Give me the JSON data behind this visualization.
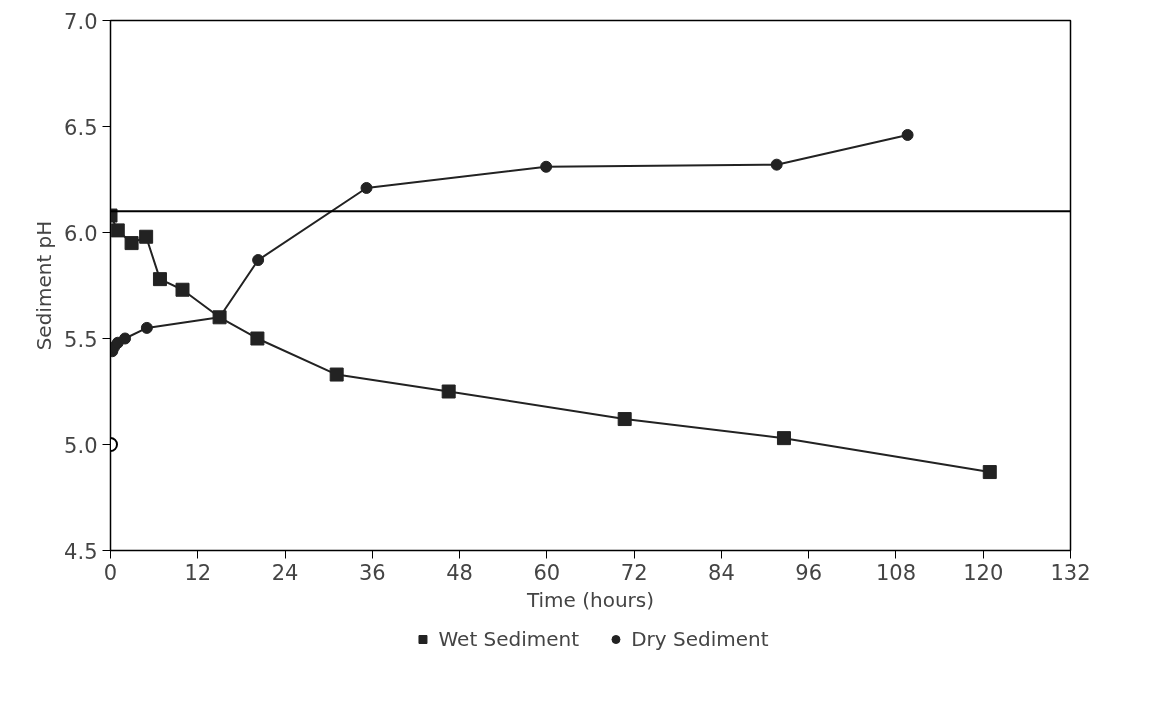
{
  "chart_data": {
    "type": "line",
    "xlabel": "Time (hours)",
    "ylabel": "Sediment pH",
    "xlim": [
      0,
      132
    ],
    "xticks": [
      0,
      12,
      24,
      36,
      48,
      60,
      72,
      84,
      96,
      108,
      120,
      132
    ],
    "ylim": [
      4.5,
      7.0
    ],
    "yticks": [
      {
        "value": 4.5,
        "label": "4.5"
      },
      {
        "value": 5.0,
        "label": "5.0"
      },
      {
        "value": 5.5,
        "label": "5.5"
      },
      {
        "value": 6.0,
        "label": "6.0"
      },
      {
        "value": 6.5,
        "label": "6.5"
      },
      {
        "value": 7.0,
        "label": "7.0"
      }
    ],
    "grid": false,
    "legend": "bottom",
    "line_style": "solid",
    "ref_lines": [
      {
        "axis": "y",
        "value": 6.1,
        "color": "#000000"
      }
    ],
    "series": [
      {
        "name": "Wet Sediment",
        "color": "#222222",
        "marker": "square",
        "x": [
          0,
          1,
          2.9,
          4.9,
          6.8,
          9.9,
          15,
          20.2,
          31.1,
          46.5,
          70.7,
          92.6,
          120.9
        ],
        "values": [
          6.08,
          6.01,
          5.95,
          5.98,
          5.78,
          5.73,
          5.6,
          5.5,
          5.33,
          5.25,
          5.12,
          5.03,
          4.87
        ]
      },
      {
        "name": "Dry Sediment",
        "color": "#222222",
        "marker": "circle",
        "x": [
          0.25,
          0.5,
          1,
          2,
          5,
          15,
          20.3,
          35.2,
          59.9,
          91.6,
          109.6
        ],
        "values": [
          5.44,
          5.46,
          5.48,
          5.5,
          5.55,
          5.6,
          5.87,
          6.21,
          6.31,
          6.32,
          6.46
        ]
      },
      {
        "type": "scatter",
        "color": "#000000",
        "marker": "circle",
        "x": [
          0
        ],
        "values": [
          5.0
        ]
      }
    ]
  }
}
